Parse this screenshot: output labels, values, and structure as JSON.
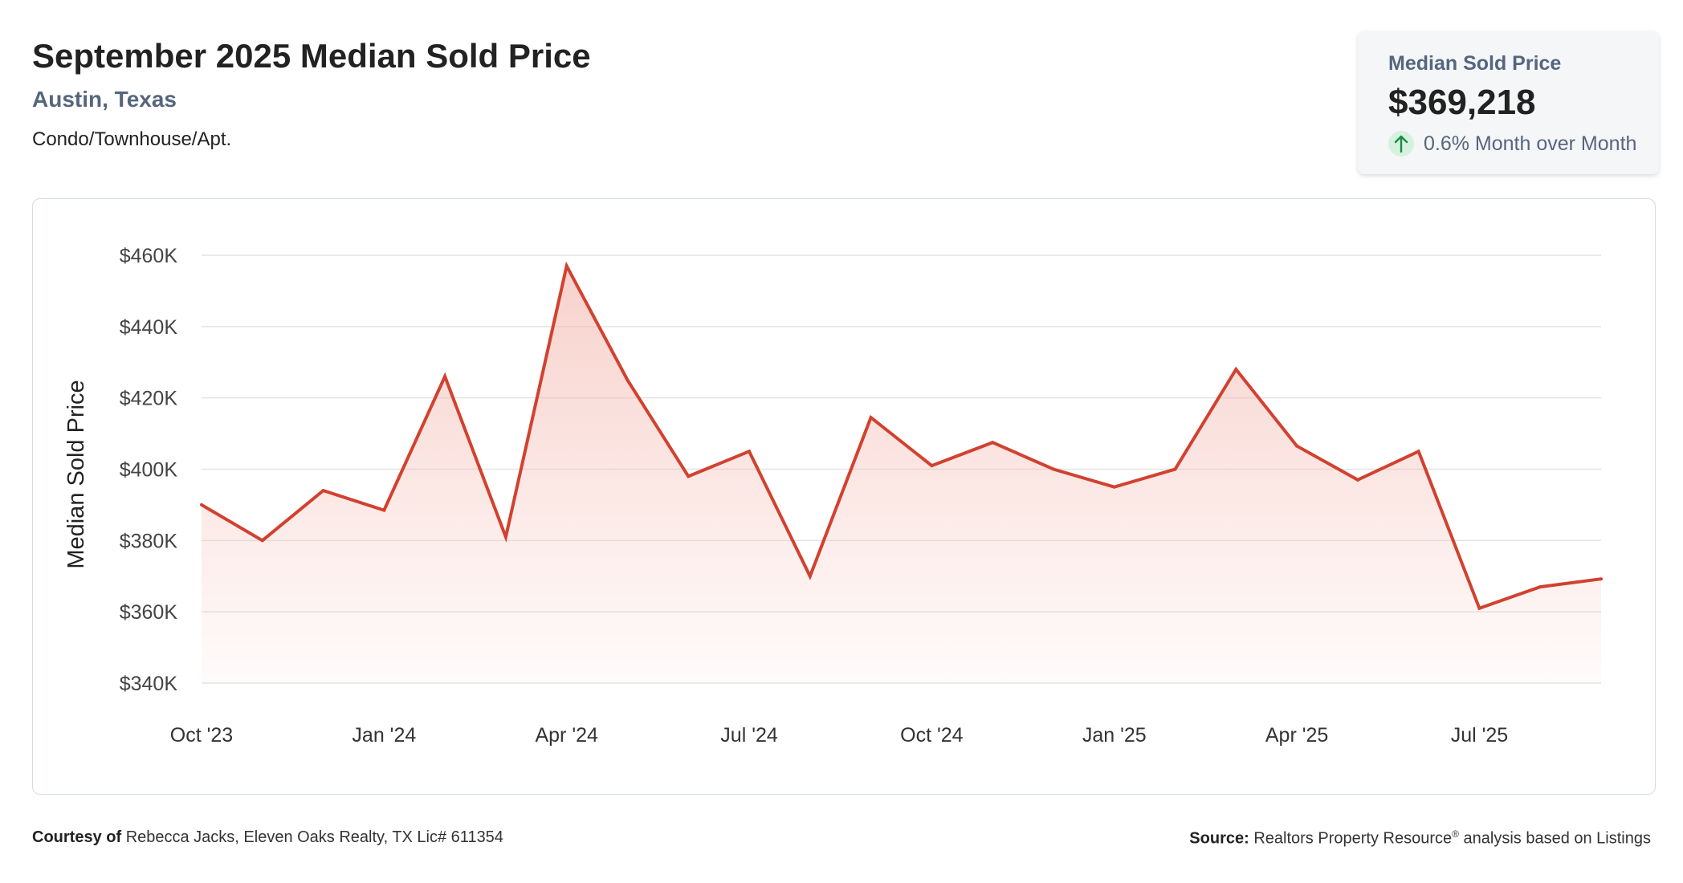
{
  "header": {
    "title": "September 2025 Median Sold Price",
    "location": "Austin, Texas",
    "property_type": "Condo/Townhouse/Apt."
  },
  "kpi": {
    "label": "Median Sold Price",
    "value": "$369,218",
    "change": "0.6% Month over Month",
    "direction_icon": "arrow-up-icon",
    "change_color": "#1d8a46"
  },
  "footer": {
    "courtesy_label": "Courtesy of",
    "courtesy_text": "Rebecca Jacks, Eleven Oaks Realty, TX Lic# 611354",
    "source_label": "Source:",
    "source_text_pre": "Realtors Property Resource",
    "source_sup": "®",
    "source_text_post": "analysis based on Listings"
  },
  "chart_data": {
    "type": "area",
    "title": "",
    "xlabel": "",
    "ylabel": "Median Sold Price",
    "ylim": [
      340000,
      460000
    ],
    "y_ticks": [
      340000,
      360000,
      380000,
      400000,
      420000,
      440000,
      460000
    ],
    "y_tick_labels": [
      "$340K",
      "$360K",
      "$380K",
      "$400K",
      "$420K",
      "$440K",
      "$460K"
    ],
    "x_tick_labels": [
      "Oct '23",
      "Jan '24",
      "Apr '24",
      "Jul '24",
      "Oct '24",
      "Jan '25",
      "Apr '25",
      "Jul '25"
    ],
    "x_tick_indices": [
      0,
      3,
      6,
      9,
      12,
      15,
      18,
      21
    ],
    "grid": true,
    "legend": "none",
    "colors": {
      "line": "#d2412f",
      "fill": "#f4b9b0",
      "grid": "#e1e4e8"
    },
    "series": [
      {
        "x": [
          "2023-10",
          "2023-11",
          "2023-12",
          "2024-01",
          "2024-02",
          "2024-03",
          "2024-04",
          "2024-05",
          "2024-06",
          "2024-07",
          "2024-08",
          "2024-09",
          "2024-10",
          "2024-11",
          "2024-12",
          "2025-01",
          "2025-02",
          "2025-03",
          "2025-04",
          "2025-05",
          "2025-06",
          "2025-07",
          "2025-08",
          "2025-09"
        ],
        "values": [
          390000,
          380000,
          394000,
          388500,
          426000,
          381000,
          457000,
          425000,
          398000,
          405000,
          370000,
          414500,
          401000,
          407500,
          400000,
          395000,
          400000,
          428000,
          406500,
          397000,
          405000,
          361000,
          367000,
          369218
        ]
      }
    ]
  }
}
